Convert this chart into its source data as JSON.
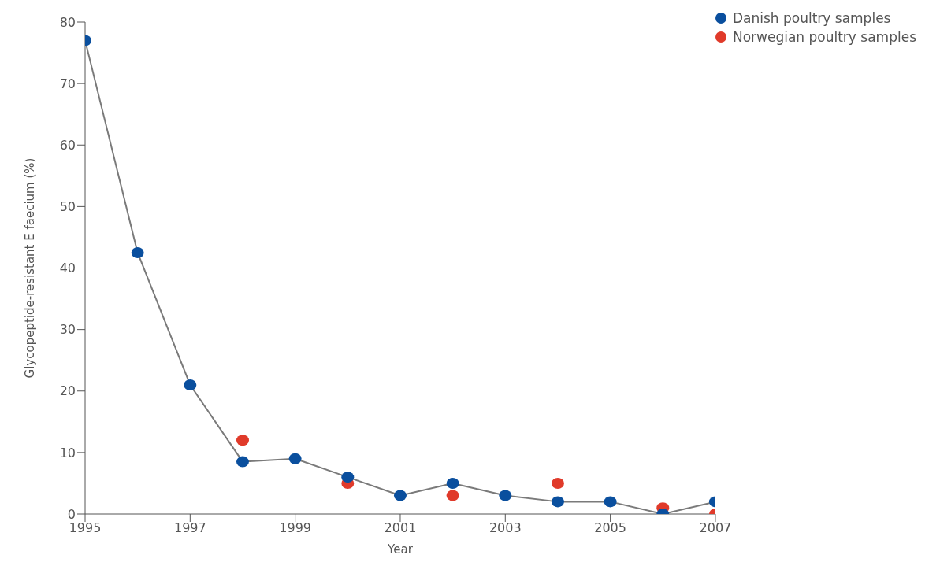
{
  "chart_data": {
    "type": "line",
    "xlabel": "Year",
    "ylabel": "Glycopeptide-resistant E faecium (%)",
    "x": [
      1995,
      1996,
      1997,
      1998,
      1999,
      2000,
      2001,
      2002,
      2003,
      2004,
      2005,
      2006,
      2007
    ],
    "series": [
      {
        "name": "Danish poultry samples",
        "color": "#0a4f9e",
        "values": [
          77,
          42.5,
          21,
          8.5,
          9,
          6,
          3,
          5,
          3,
          2,
          2,
          0,
          2
        ]
      },
      {
        "name": "Norwegian poultry samples",
        "type": "scatter",
        "color": "#e03a2a",
        "x": [
          1998,
          2000,
          2002,
          2004,
          2006,
          2007
        ],
        "values": [
          12,
          5,
          3,
          5,
          1,
          0
        ]
      }
    ],
    "xlim": [
      1995,
      2007
    ],
    "xticks": [
      1995,
      1997,
      1999,
      2001,
      2003,
      2005,
      2007
    ],
    "ylim": [
      0,
      80
    ],
    "yticks": [
      0,
      10,
      20,
      30,
      40,
      50,
      60,
      70,
      80
    ],
    "grid": false,
    "legend": "top right",
    "marker": "circle"
  }
}
